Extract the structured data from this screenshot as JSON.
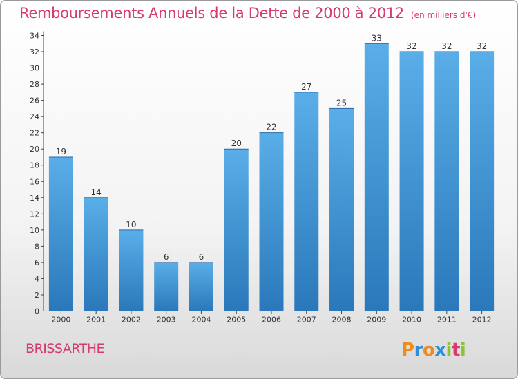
{
  "header": {
    "title": "Remboursements Annuels de la Dette de 2000 à 2012",
    "unit": "(en milliers d'€)"
  },
  "footer": {
    "commune": "BRISSARTHE",
    "logo_letters": [
      "P",
      "r",
      "o",
      "x",
      "i",
      "t",
      "i"
    ]
  },
  "colors": {
    "title": "#d63a6e",
    "bar_top": "#5aaee8",
    "bar_bottom": "#2a78ba",
    "logo": [
      "#f08a1a",
      "#2f8fd6",
      "#f08a1a",
      "#2f8fd6",
      "#8ac432",
      "#d63a6e",
      "#8ac432"
    ]
  },
  "chart_data": {
    "type": "bar",
    "categories": [
      "2000",
      "2001",
      "2002",
      "2003",
      "2004",
      "2005",
      "2006",
      "2007",
      "2008",
      "2009",
      "2010",
      "2011",
      "2012"
    ],
    "values": [
      19,
      14,
      10,
      6,
      6,
      20,
      22,
      27,
      25,
      33,
      32,
      32,
      32
    ],
    "title": "Remboursements Annuels de la Dette de 2000 à 2012",
    "xlabel": "",
    "ylabel": "",
    "ylim": [
      0,
      34
    ],
    "yticks": [
      0,
      2,
      4,
      6,
      8,
      10,
      12,
      14,
      16,
      18,
      20,
      22,
      24,
      26,
      28,
      30,
      32,
      34
    ],
    "grid": false,
    "legend": "none"
  }
}
